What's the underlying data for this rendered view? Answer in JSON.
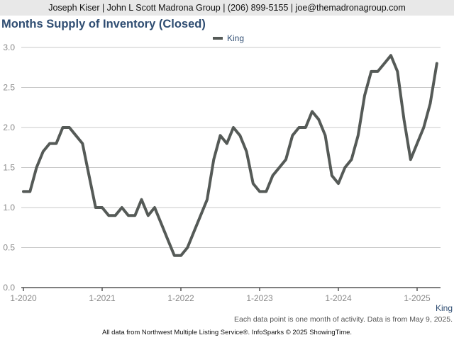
{
  "header": {
    "contact": "Joseph Kiser | John L Scott Madrona Group | (206) 899-5155 | joe@themadronagroup.com"
  },
  "chart_data": {
    "type": "line",
    "title": "Months Supply of Inventory (Closed)",
    "xlabel": "King",
    "ylabel": "",
    "ylim": [
      0,
      3.0
    ],
    "yticks": [
      "0.0",
      "0.5",
      "1.0",
      "1.5",
      "2.0",
      "2.5",
      "3.0"
    ],
    "xticks": [
      "1-2020",
      "1-2021",
      "1-2022",
      "1-2023",
      "1-2024",
      "1-2025"
    ],
    "grid": true,
    "legend_position": "top-center",
    "series": [
      {
        "name": "King",
        "color": "#555a57",
        "x_start": "1-2020",
        "values": [
          1.2,
          1.2,
          1.5,
          1.7,
          1.8,
          1.8,
          2.0,
          2.0,
          1.9,
          1.8,
          1.4,
          1.0,
          1.0,
          0.9,
          0.9,
          1.0,
          0.9,
          0.9,
          1.1,
          0.9,
          1.0,
          0.8,
          0.6,
          0.4,
          0.4,
          0.5,
          0.7,
          0.9,
          1.1,
          1.6,
          1.9,
          1.8,
          2.0,
          1.9,
          1.7,
          1.3,
          1.2,
          1.2,
          1.4,
          1.5,
          1.6,
          1.9,
          2.0,
          2.0,
          2.2,
          2.1,
          1.9,
          1.4,
          1.3,
          1.5,
          1.6,
          1.9,
          2.4,
          2.7,
          2.7,
          2.8,
          2.9,
          2.7,
          2.1,
          1.6,
          1.8,
          2.0,
          2.3,
          2.8
        ]
      }
    ]
  },
  "footnotes": {
    "line1": "Each data point is one month of activity. Data is from May 9, 2025.",
    "line2": "All data from Northwest Multiple Listing Service®. InfoSparks © 2025 ShowingTime."
  }
}
